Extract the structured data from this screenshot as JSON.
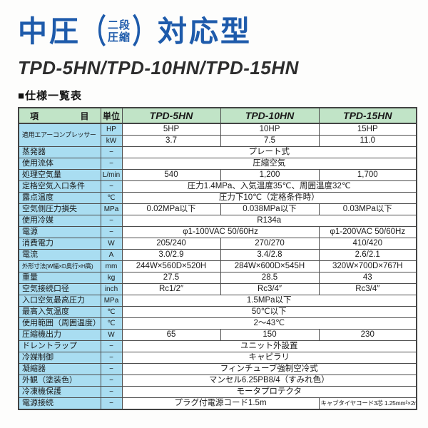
{
  "page": {
    "title_main_1": "中圧",
    "title_paren_open": "（",
    "title_paren_top": "二段",
    "title_paren_bottom": "圧縮",
    "title_paren_close": "）",
    "title_main_2": "対応型",
    "subtitle": "TPD-5HN/TPD-10HN/TPD-15HN",
    "section_heading": "■仕様一覧表"
  },
  "colors": {
    "title_blue": "#1e5bab",
    "header_green": "#c1e4c7",
    "label_column_blue": "#a9ddf1",
    "table_border": "#4d4d4d"
  },
  "table": {
    "header": {
      "item_left": "項",
      "item_right": "目",
      "unit": "単位",
      "models": [
        "TPD-5HN",
        "TPD-10HN",
        "TPD-15HN"
      ]
    },
    "rows": [
      {
        "item": "適用エアーコンプレッサー",
        "item_rowspan": 2,
        "item_class": "sz9",
        "unit": "HP",
        "cells": [
          "5HP",
          "10HP",
          "15HP"
        ]
      },
      {
        "unit": "kW",
        "cells": [
          "3.7",
          "7.5",
          "11.0"
        ]
      },
      {
        "item": "蒸発器",
        "unit": "−",
        "cells": [
          {
            "text": "プレート式",
            "span": 3
          }
        ]
      },
      {
        "item": "使用流体",
        "unit": "−",
        "cells": [
          {
            "text": "圧縮空気",
            "span": 3
          }
        ]
      },
      {
        "item": "処理空気量",
        "unit": "L/min",
        "cells": [
          "540",
          "1,200",
          "1,700"
        ]
      },
      {
        "item": "定格空気入口条件",
        "unit": "−",
        "cells": [
          {
            "text": "圧力1.4MPa、入気温度35℃、周囲温度32℃",
            "span": 3
          }
        ]
      },
      {
        "item": "露点温度",
        "unit": "℃",
        "cells": [
          {
            "text": "圧力下10℃（定格条件時）",
            "span": 3
          }
        ]
      },
      {
        "item": "空気側圧力損失",
        "unit": "MPa",
        "cells": [
          "0.02MPa以下",
          "0.038MPa以下",
          "0.03MPa以下"
        ]
      },
      {
        "item": "使用冷媒",
        "unit": "−",
        "cells": [
          {
            "text": "R134a",
            "span": 3
          }
        ]
      },
      {
        "item": "電源",
        "unit": "−",
        "cells": [
          {
            "text": "φ1-100VAC  50/60Hz",
            "span": 2
          },
          {
            "text": "φ1-200VAC  50/60Hz",
            "span": 1
          }
        ]
      },
      {
        "item": "消費電力",
        "unit": "W",
        "cells": [
          "205/240",
          "270/270",
          "410/420"
        ]
      },
      {
        "item": "電流",
        "unit": "A",
        "cells": [
          "3.0/2.9",
          "3.4/2.8",
          "2.6/2.1"
        ]
      },
      {
        "item": "外形寸法(W幅×D奥行×H高)",
        "item_class": "sz8",
        "unit": "mm",
        "cells": [
          "244W×560D×520H",
          "284W×600D×545H",
          "320W×700D×767H"
        ]
      },
      {
        "item": "重量",
        "unit": "kg",
        "cells": [
          "27.5",
          "28.5",
          "43"
        ]
      },
      {
        "item": "空気接続口径",
        "unit": "inch",
        "cells": [
          "Rc1/2″",
          "Rc3/4″",
          "Rc3/4″"
        ]
      },
      {
        "item": "入口空気最高圧力",
        "unit": "MPa",
        "cells": [
          {
            "text": "1.5MPa以下",
            "span": 3
          }
        ]
      },
      {
        "item": "最高入気温度",
        "unit": "℃",
        "cells": [
          {
            "text": "50℃以下",
            "span": 3
          }
        ]
      },
      {
        "item": "使用範囲（周囲温度）",
        "unit": "℃",
        "cells": [
          {
            "text": "2〜43℃",
            "span": 3
          }
        ]
      },
      {
        "item": "圧縮機出力",
        "unit": "W",
        "cells": [
          "65",
          "150",
          "230"
        ]
      },
      {
        "item": "ドレントラップ",
        "unit": "−",
        "cells": [
          {
            "text": "ユニット外設置",
            "span": 3
          }
        ]
      },
      {
        "item": "冷媒制御",
        "unit": "−",
        "cells": [
          {
            "text": "キャピラリ",
            "span": 3
          }
        ]
      },
      {
        "item": "凝縮器",
        "unit": "−",
        "cells": [
          {
            "text": "フィンチューブ強制空冷式",
            "span": 3
          }
        ]
      },
      {
        "item": "外観（塗装色）",
        "unit": "−",
        "cells": [
          {
            "text": "マンセル6.25PB8/4（すみれ色）",
            "span": 3
          }
        ]
      },
      {
        "item": "冷凍機保護",
        "unit": "−",
        "cells": [
          {
            "text": "モータプロテクタ",
            "span": 3
          }
        ]
      },
      {
        "item": "電源接続",
        "unit": "−",
        "cells": [
          {
            "text": "プラグ付電源コード1.5m",
            "span": 2
          },
          {
            "text": "キャブタイヤコード3芯 1.25mm²×2m",
            "span": 1,
            "small": true
          }
        ]
      }
    ]
  }
}
